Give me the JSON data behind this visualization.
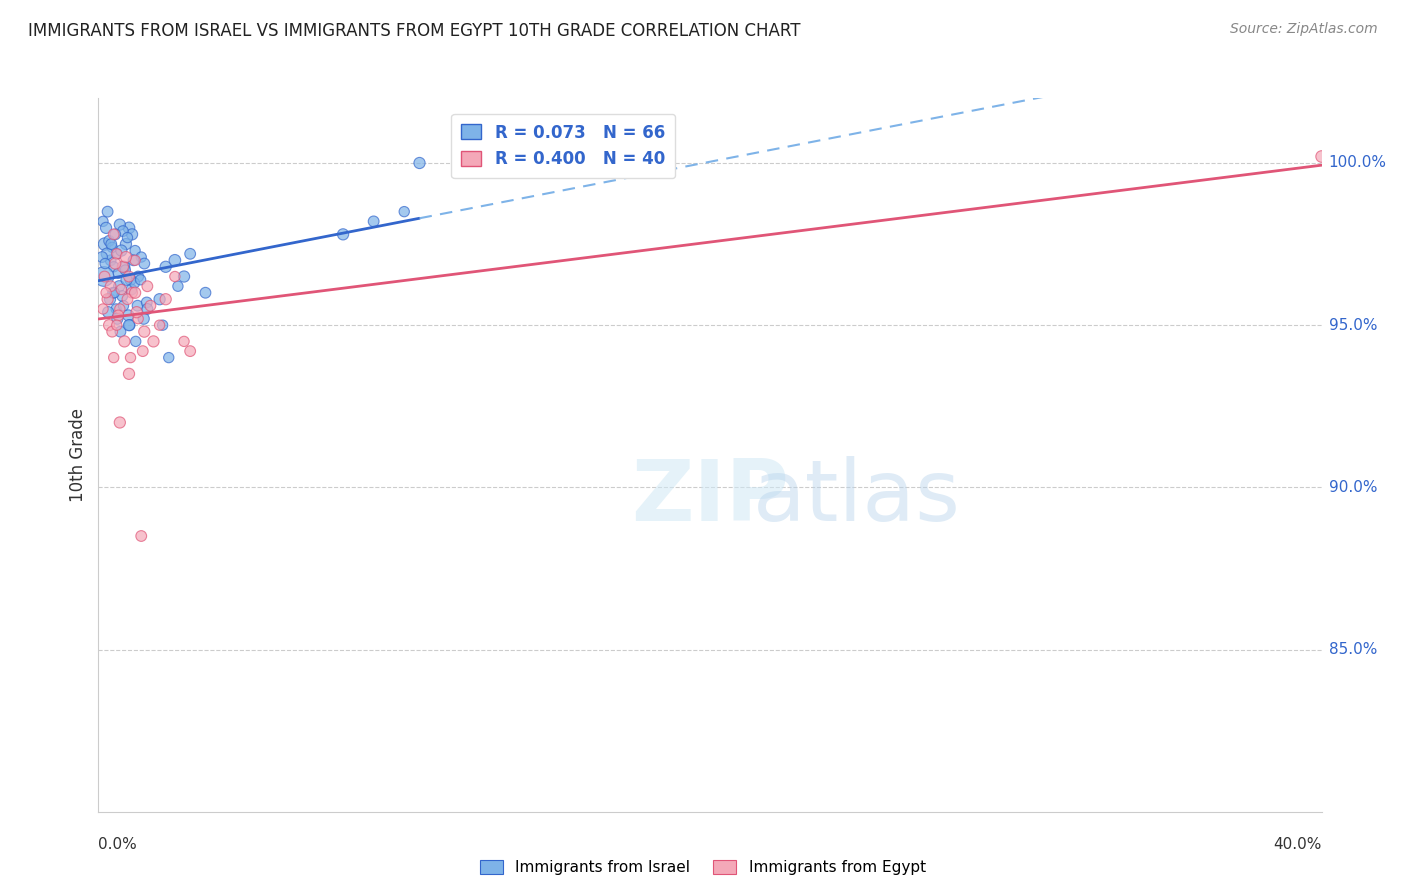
{
  "title": "IMMIGRANTS FROM ISRAEL VS IMMIGRANTS FROM EGYPT 10TH GRADE CORRELATION CHART",
  "source": "Source: ZipAtlas.com",
  "ylabel": "10th Grade",
  "xlim": [
    0.0,
    40.0
  ],
  "ylim": [
    80.0,
    102.0
  ],
  "gridline_color": "#cccccc",
  "background_color": "#ffffff",
  "israel_color": "#7EB3E8",
  "israel_line_color": "#3366CC",
  "egypt_color": "#F4A8B8",
  "egypt_line_color": "#E05577",
  "R_israel": 0.073,
  "N_israel": 66,
  "R_egypt": 0.4,
  "N_egypt": 40,
  "legend_label_israel": "Immigrants from Israel",
  "legend_label_egypt": "Immigrants from Egypt",
  "right_ytick_vals": [
    85.0,
    90.0,
    95.0,
    100.0
  ],
  "right_ytick_labels": [
    "85.0%",
    "90.0%",
    "95.0%",
    "100.0%"
  ],
  "israel_x": [
    0.2,
    0.3,
    1.0,
    1.1,
    0.15,
    0.4,
    0.5,
    0.6,
    0.7,
    0.8,
    0.9,
    1.2,
    1.3,
    1.4,
    1.5,
    0.25,
    0.35,
    0.45,
    0.55,
    0.65,
    0.75,
    0.85,
    0.95,
    1.05,
    1.15,
    0.18,
    0.28,
    0.38,
    0.48,
    0.58,
    0.68,
    0.78,
    0.88,
    0.98,
    1.08,
    1.18,
    1.28,
    1.38,
    1.48,
    1.58,
    2.1,
    2.2,
    2.5,
    2.8,
    3.0,
    8.0,
    9.0,
    10.0,
    0.12,
    0.22,
    0.32,
    0.42,
    0.52,
    0.62,
    0.72,
    0.82,
    0.92,
    1.02,
    1.22,
    2.0,
    2.3,
    1.6,
    2.6,
    1.0,
    3.5,
    10.5
  ],
  "israel_y": [
    97.5,
    98.5,
    98.0,
    97.8,
    98.2,
    97.0,
    96.8,
    97.2,
    98.1,
    97.9,
    97.5,
    97.3,
    96.5,
    97.1,
    96.9,
    98.0,
    97.6,
    97.4,
    97.8,
    96.6,
    97.3,
    96.8,
    97.7,
    96.4,
    97.0,
    96.5,
    97.2,
    95.8,
    96.0,
    95.5,
    96.2,
    95.9,
    96.7,
    95.3,
    96.1,
    96.3,
    95.6,
    96.4,
    95.2,
    95.7,
    95.0,
    96.8,
    97.0,
    96.5,
    97.2,
    97.8,
    98.2,
    98.5,
    97.1,
    96.9,
    95.4,
    97.5,
    96.0,
    95.2,
    94.8,
    95.6,
    96.4,
    95.0,
    94.5,
    95.8,
    94.0,
    95.5,
    96.2,
    95.0,
    96.0,
    100.0
  ],
  "israel_sizes": [
    80,
    60,
    70,
    65,
    55,
    60,
    55,
    60,
    65,
    60,
    65,
    55,
    60,
    55,
    60,
    65,
    60,
    55,
    60,
    55,
    65,
    60,
    55,
    65,
    60,
    200,
    70,
    65,
    60,
    55,
    65,
    60,
    55,
    65,
    60,
    55,
    60,
    55,
    65,
    60,
    55,
    65,
    70,
    65,
    60,
    65,
    60,
    55,
    60,
    55,
    65,
    60,
    55,
    65,
    60,
    55,
    65,
    60,
    55,
    65,
    55,
    60,
    55,
    65,
    60,
    65
  ],
  "egypt_x": [
    0.5,
    0.6,
    0.8,
    1.0,
    1.2,
    0.3,
    0.4,
    0.7,
    0.9,
    1.1,
    1.3,
    1.5,
    1.7,
    2.0,
    0.55,
    0.65,
    0.75,
    0.85,
    0.95,
    1.05,
    1.25,
    1.45,
    2.5,
    0.35,
    0.45,
    0.25,
    1.8,
    1.6,
    0.15,
    2.2,
    0.2,
    0.5,
    1.0,
    3.0,
    2.8,
    0.7,
    1.4,
    0.6,
    1.2,
    40.0
  ],
  "egypt_y": [
    97.8,
    97.2,
    96.8,
    96.5,
    97.0,
    95.8,
    96.2,
    95.5,
    97.1,
    96.0,
    95.2,
    94.8,
    95.6,
    95.0,
    96.9,
    95.3,
    96.1,
    94.5,
    95.8,
    94.0,
    95.4,
    94.2,
    96.5,
    95.0,
    94.8,
    96.0,
    94.5,
    96.2,
    95.5,
    95.8,
    96.5,
    94.0,
    93.5,
    94.2,
    94.5,
    92.0,
    88.5,
    95.0,
    96.0,
    100.2
  ],
  "egypt_sizes": [
    60,
    55,
    65,
    60,
    55,
    65,
    60,
    55,
    65,
    60,
    55,
    65,
    60,
    55,
    65,
    60,
    55,
    65,
    60,
    55,
    65,
    60,
    55,
    65,
    60,
    55,
    65,
    60,
    55,
    65,
    60,
    55,
    65,
    60,
    55,
    65,
    60,
    55,
    65,
    70
  ]
}
